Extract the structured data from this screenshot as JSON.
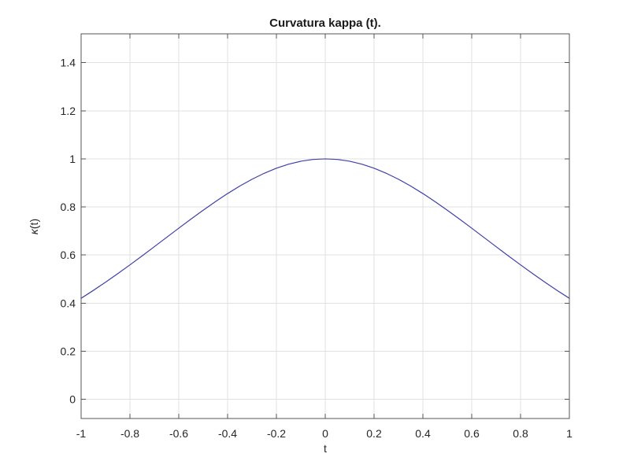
{
  "figure": {
    "background": "#ffffff"
  },
  "chart_data": {
    "type": "line",
    "title": "Curvatura kappa (t).",
    "xlabel": "t",
    "ylabel": "κ(t)",
    "ylabel_kappa": "κ",
    "ylabel_rest": "(t)",
    "xlim": [
      -1,
      1
    ],
    "ylim": [
      -0.08,
      1.52
    ],
    "xticks": [
      -1,
      -0.8,
      -0.6,
      -0.4,
      -0.2,
      0,
      0.2,
      0.4,
      0.6,
      0.8,
      1
    ],
    "xtick_labels": [
      "-1",
      "-0.8",
      "-0.6",
      "-0.4",
      "-0.2",
      "0",
      "0.2",
      "0.4",
      "0.6",
      "0.8",
      "1"
    ],
    "yticks": [
      0,
      0.2,
      0.4,
      0.6,
      0.8,
      1,
      1.2,
      1.4
    ],
    "ytick_labels": [
      "0",
      "0.2",
      "0.4",
      "0.6",
      "0.8",
      "1",
      "1.2",
      "1.4"
    ],
    "grid": true,
    "legend": "none",
    "colors": {
      "line": "#4040a8",
      "axis": "#555555",
      "grid": "#e0e0e0",
      "text": "#262626"
    },
    "series": [
      {
        "name": "kappa(t)",
        "x": [
          -1,
          -0.95,
          -0.9,
          -0.85,
          -0.8,
          -0.75,
          -0.7,
          -0.65,
          -0.6,
          -0.55,
          -0.5,
          -0.45,
          -0.4,
          -0.35,
          -0.3,
          -0.25,
          -0.2,
          -0.15,
          -0.1,
          -0.05,
          0,
          0.05,
          0.1,
          0.15,
          0.2,
          0.25,
          0.3,
          0.35,
          0.4,
          0.45,
          0.5,
          0.55,
          0.6,
          0.65,
          0.7,
          0.75,
          0.8,
          0.85,
          0.9,
          0.95,
          1
        ],
        "y": [
          0.42,
          0.4527,
          0.4869,
          0.5224,
          0.5591,
          0.5966,
          0.6347,
          0.6732,
          0.7116,
          0.7495,
          0.7864,
          0.822,
          0.8556,
          0.8868,
          0.9151,
          0.94,
          0.961,
          0.9778,
          0.9901,
          0.9975,
          1,
          0.9975,
          0.9901,
          0.9778,
          0.961,
          0.94,
          0.9151,
          0.8868,
          0.8556,
          0.822,
          0.7864,
          0.7495,
          0.7116,
          0.6732,
          0.6347,
          0.5966,
          0.5591,
          0.5224,
          0.4869,
          0.4527,
          0.42
        ]
      }
    ]
  }
}
